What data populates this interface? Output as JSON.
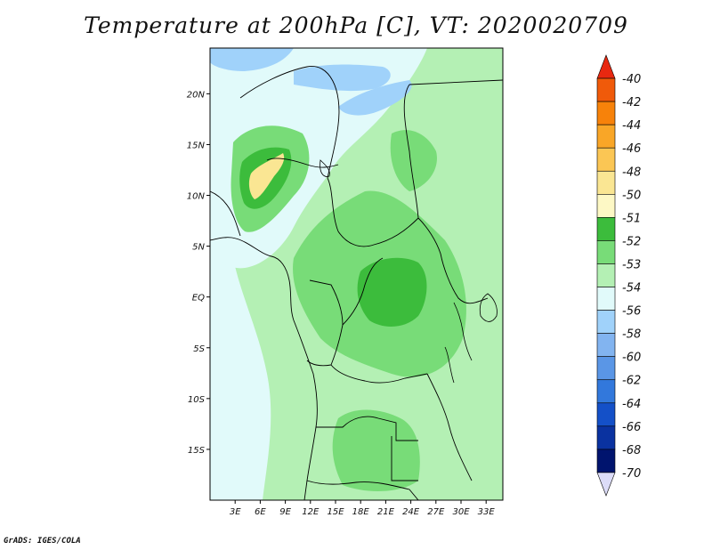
{
  "title": "Temperature at 200hPa [C], VT: 2020020709",
  "credit": "GrADS: IGES/COLA",
  "map": {
    "lon_range": [
      0,
      35
    ],
    "lat_range": [
      -20,
      24.5
    ],
    "lat_ticks": [
      {
        "label": "20N",
        "lat": 20
      },
      {
        "label": "15N",
        "lat": 15
      },
      {
        "label": "10N",
        "lat": 10
      },
      {
        "label": "5N",
        "lat": 5
      },
      {
        "label": "EQ",
        "lat": 0
      },
      {
        "label": "5S",
        "lat": -5
      },
      {
        "label": "10S",
        "lat": -10
      },
      {
        "label": "15S",
        "lat": -15
      }
    ],
    "lon_ticks": [
      {
        "label": "3E",
        "lon": 3
      },
      {
        "label": "6E",
        "lon": 6
      },
      {
        "label": "9E",
        "lon": 9
      },
      {
        "label": "12E",
        "lon": 12
      },
      {
        "label": "15E",
        "lon": 15
      },
      {
        "label": "18E",
        "lon": 18
      },
      {
        "label": "21E",
        "lon": 21
      },
      {
        "label": "24E",
        "lon": 24
      },
      {
        "label": "27E",
        "lon": 27
      },
      {
        "label": "30E",
        "lon": 30
      },
      {
        "label": "33E",
        "lon": 33
      }
    ]
  },
  "colorbar": {
    "labels": [
      "-40",
      "-42",
      "-44",
      "-46",
      "-48",
      "-50",
      "-51",
      "-52",
      "-53",
      "-54",
      "-56",
      "-58",
      "-60",
      "-62",
      "-64",
      "-66",
      "-68",
      "-70"
    ],
    "colors": [
      "#e82810",
      "#f05a0a",
      "#f7820a",
      "#f9a627",
      "#fbc654",
      "#fae693",
      "#fdf8c5",
      "#3cbc3c",
      "#78dc78",
      "#b4f0b4",
      "#e1fafa",
      "#a0d2fa",
      "#82b4f0",
      "#5a96e6",
      "#3278dc",
      "#1450c8",
      "#0a32a0",
      "#00146e",
      "#dcdcf8"
    ]
  },
  "palette": {
    "t_m51": "#fae693",
    "t_m52": "#3cbc3c",
    "t_m53": "#78dc78",
    "t_m54": "#b4f0b4",
    "t_m56": "#e1fafa",
    "t_m58": "#a0d2fa"
  }
}
